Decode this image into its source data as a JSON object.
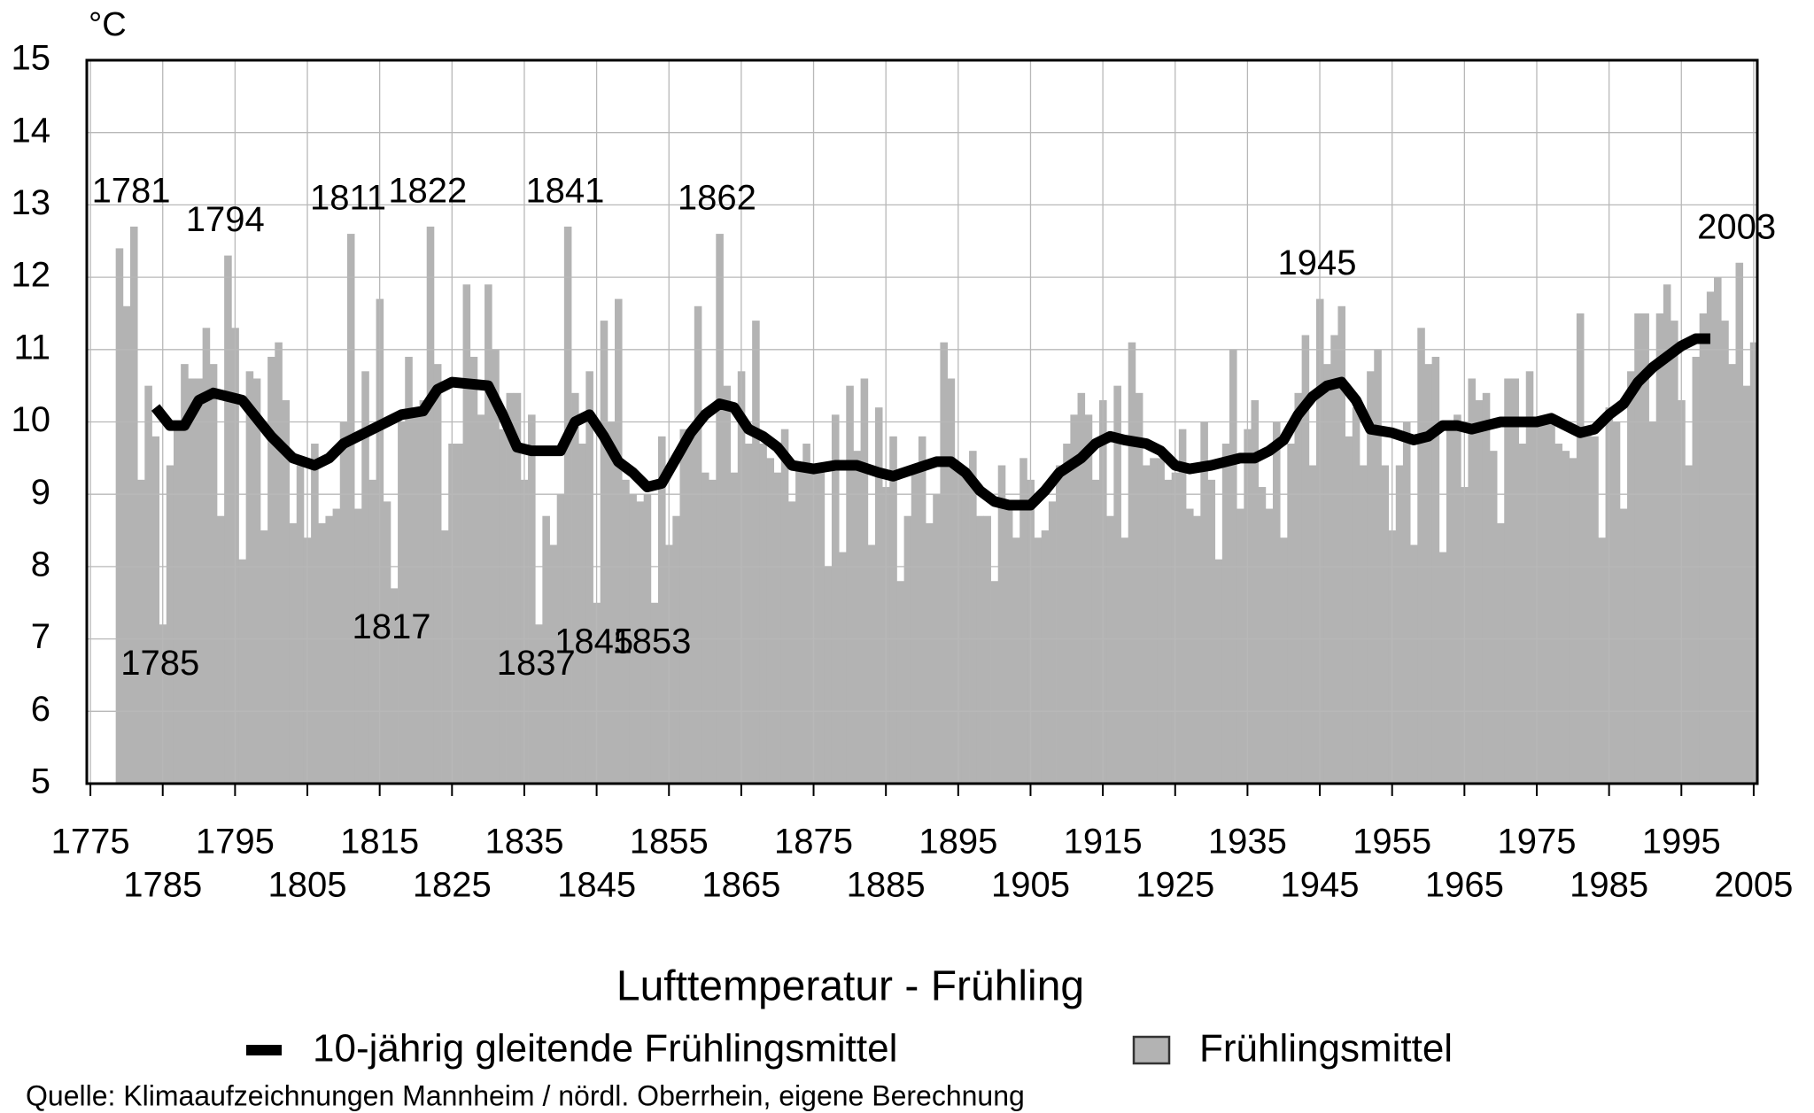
{
  "chart_data": {
    "type": "bar",
    "title": "Lufttemperatur - Frühling",
    "ylabel": "°C",
    "source": "Quelle: Klimaaufzeichnungen Mannheim / nördl. Oberrhein, eigene Berechnung",
    "xlim": [
      1774.5,
      2005.5
    ],
    "xticks": [
      1775,
      1785,
      1795,
      1805,
      1815,
      1825,
      1835,
      1845,
      1855,
      1865,
      1875,
      1885,
      1895,
      1905,
      1915,
      1925,
      1935,
      1945,
      1955,
      1965,
      1975,
      1985,
      1995,
      2005
    ],
    "ylim": [
      5,
      15
    ],
    "yticks": [
      5,
      6,
      7,
      8,
      9,
      10,
      11,
      12,
      13,
      14,
      15
    ],
    "grid": true,
    "x": [
      1779,
      1780,
      1781,
      1782,
      1783,
      1784,
      1785,
      1786,
      1787,
      1788,
      1789,
      1790,
      1791,
      1792,
      1793,
      1794,
      1795,
      1796,
      1797,
      1798,
      1799,
      1800,
      1801,
      1802,
      1803,
      1804,
      1805,
      1806,
      1807,
      1808,
      1809,
      1810,
      1811,
      1812,
      1813,
      1814,
      1815,
      1816,
      1817,
      1818,
      1819,
      1820,
      1821,
      1822,
      1823,
      1824,
      1825,
      1826,
      1827,
      1828,
      1829,
      1830,
      1831,
      1832,
      1833,
      1834,
      1835,
      1836,
      1837,
      1838,
      1839,
      1840,
      1841,
      1842,
      1843,
      1844,
      1845,
      1846,
      1847,
      1848,
      1849,
      1850,
      1851,
      1852,
      1853,
      1854,
      1855,
      1856,
      1857,
      1858,
      1859,
      1860,
      1861,
      1862,
      1863,
      1864,
      1865,
      1866,
      1867,
      1868,
      1869,
      1870,
      1871,
      1872,
      1873,
      1874,
      1875,
      1876,
      1877,
      1878,
      1879,
      1880,
      1881,
      1882,
      1883,
      1884,
      1885,
      1886,
      1887,
      1888,
      1889,
      1890,
      1891,
      1892,
      1893,
      1894,
      1895,
      1896,
      1897,
      1898,
      1899,
      1900,
      1901,
      1902,
      1903,
      1904,
      1905,
      1906,
      1907,
      1908,
      1909,
      1910,
      1911,
      1912,
      1913,
      1914,
      1915,
      1916,
      1917,
      1918,
      1919,
      1920,
      1921,
      1922,
      1923,
      1924,
      1925,
      1926,
      1927,
      1928,
      1929,
      1930,
      1931,
      1932,
      1933,
      1934,
      1935,
      1936,
      1937,
      1938,
      1939,
      1940,
      1941,
      1942,
      1943,
      1944,
      1945,
      1946,
      1947,
      1948,
      1949,
      1950,
      1951,
      1952,
      1953,
      1954,
      1955,
      1956,
      1957,
      1958,
      1959,
      1960,
      1961,
      1962,
      1963,
      1964,
      1965,
      1966,
      1967,
      1968,
      1969,
      1970,
      1971,
      1972,
      1973,
      1974,
      1975,
      1976,
      1977,
      1978,
      1979,
      1980,
      1981,
      1982,
      1983,
      1984,
      1985,
      1986,
      1987,
      1988,
      1989,
      1990,
      1991,
      1992,
      1993,
      1994,
      1995,
      1996,
      1997,
      1998,
      1999,
      2000,
      2001,
      2002,
      2003,
      2004,
      2005
    ],
    "series": [
      {
        "name": "Frühlingsmittel",
        "type": "bar",
        "color": "#b3b3b3",
        "values": [
          12.4,
          11.6,
          12.7,
          9.2,
          10.5,
          9.8,
          7.2,
          9.4,
          10.0,
          10.8,
          10.6,
          10.6,
          11.3,
          10.8,
          8.7,
          12.3,
          11.3,
          8.1,
          10.7,
          10.6,
          8.5,
          10.9,
          11.1,
          10.3,
          8.6,
          9.4,
          8.4,
          9.7,
          8.6,
          8.7,
          8.8,
          10.0,
          12.6,
          8.8,
          10.7,
          9.2,
          11.7,
          8.9,
          7.7,
          10.0,
          10.9,
          10.1,
          10.3,
          12.7,
          10.8,
          8.5,
          9.7,
          9.7,
          11.9,
          10.9,
          10.1,
          11.9,
          11.0,
          9.9,
          10.4,
          10.4,
          9.2,
          10.1,
          7.2,
          8.7,
          8.3,
          9.0,
          12.7,
          10.4,
          9.7,
          10.7,
          7.5,
          11.4,
          10.0,
          11.7,
          9.2,
          9.0,
          8.9,
          9.0,
          7.5,
          9.8,
          8.3,
          8.7,
          9.9,
          9.8,
          11.6,
          9.3,
          9.2,
          12.6,
          10.5,
          9.3,
          10.7,
          9.7,
          11.4,
          9.7,
          9.5,
          9.3,
          9.9,
          8.9,
          9.4,
          9.7,
          9.4,
          9.4,
          8.0,
          10.1,
          8.2,
          10.5,
          9.6,
          10.6,
          8.3,
          10.2,
          9.1,
          9.8,
          7.8,
          8.7,
          9.4,
          9.8,
          8.6,
          9.0,
          11.1,
          10.6,
          9.4,
          9.3,
          9.6,
          8.7,
          8.7,
          7.8,
          9.4,
          8.8,
          8.4,
          9.5,
          9.2,
          8.4,
          8.5,
          8.9,
          9.4,
          9.7,
          10.1,
          10.4,
          10.1,
          9.2,
          10.3,
          8.7,
          10.5,
          8.4,
          11.1,
          10.4,
          9.4,
          9.5,
          9.5,
          9.2,
          9.3,
          9.9,
          8.8,
          8.7,
          10.0,
          9.2,
          8.1,
          9.7,
          11.0,
          8.8,
          9.9,
          10.3,
          9.1,
          8.8,
          10.0,
          8.4,
          9.7,
          10.4,
          11.2,
          9.4,
          11.7,
          10.8,
          11.2,
          11.6,
          9.8,
          10.2,
          9.4,
          10.7,
          11.0,
          9.4,
          8.5,
          9.4,
          10.0,
          8.3,
          11.3,
          10.8,
          10.9,
          8.2,
          10.0,
          10.1,
          9.1,
          10.6,
          10.3,
          10.4,
          9.6,
          8.6,
          10.6,
          10.6,
          9.7,
          10.7,
          10.0,
          10.0,
          10.0,
          9.7,
          9.6,
          9.5,
          11.5,
          9.9,
          9.8,
          8.4,
          10.2,
          10.0,
          8.8,
          10.7,
          11.5,
          11.5,
          10.0,
          11.5,
          11.9,
          11.4,
          10.3,
          9.4,
          10.9,
          11.5,
          11.8,
          12.0,
          11.4,
          10.8,
          12.2,
          10.5,
          11.1
        ]
      },
      {
        "name": "10-jährig gleitende Frühlingsmittel",
        "type": "line",
        "color": "#000000",
        "x": [
          1784,
          1786,
          1788,
          1790,
          1792,
          1796,
          1800,
          1803,
          1806,
          1808,
          1810,
          1815,
          1818,
          1821,
          1823,
          1825,
          1830,
          1832,
          1834,
          1836,
          1840,
          1842,
          1844,
          1846,
          1848,
          1850,
          1852,
          1854,
          1856,
          1858,
          1860,
          1862,
          1864,
          1866,
          1868,
          1870,
          1872,
          1875,
          1878,
          1881,
          1884,
          1886,
          1889,
          1892,
          1894,
          1896,
          1898,
          1900,
          1902,
          1905,
          1907,
          1909,
          1912,
          1914,
          1916,
          1918,
          1921,
          1923,
          1925,
          1927,
          1930,
          1932,
          1934,
          1936,
          1938,
          1940,
          1942,
          1944,
          1946,
          1948,
          1950,
          1952,
          1955,
          1958,
          1960,
          1962,
          1964,
          1966,
          1968,
          1970,
          1973,
          1975,
          1977,
          1979,
          1981,
          1983,
          1985,
          1987,
          1989,
          1991,
          1993,
          1995,
          1997,
          1999
        ],
        "values": [
          10.2,
          9.95,
          9.95,
          10.3,
          10.4,
          10.3,
          9.8,
          9.5,
          9.4,
          9.5,
          9.7,
          9.95,
          10.1,
          10.15,
          10.45,
          10.55,
          10.5,
          10.1,
          9.65,
          9.6,
          9.6,
          10.0,
          10.1,
          9.8,
          9.45,
          9.3,
          9.1,
          9.15,
          9.5,
          9.85,
          10.1,
          10.25,
          10.2,
          9.9,
          9.8,
          9.65,
          9.4,
          9.35,
          9.4,
          9.4,
          9.3,
          9.25,
          9.35,
          9.45,
          9.45,
          9.3,
          9.05,
          8.9,
          8.85,
          8.85,
          9.05,
          9.3,
          9.5,
          9.7,
          9.8,
          9.75,
          9.7,
          9.6,
          9.4,
          9.35,
          9.4,
          9.45,
          9.5,
          9.5,
          9.6,
          9.75,
          10.1,
          10.35,
          10.5,
          10.55,
          10.3,
          9.9,
          9.85,
          9.75,
          9.8,
          9.95,
          9.95,
          9.9,
          9.95,
          10.0,
          10.0,
          10.0,
          10.05,
          9.95,
          9.85,
          9.9,
          10.1,
          10.25,
          10.55,
          10.75,
          10.9,
          11.05,
          11.15,
          11.15
        ]
      }
    ],
    "annotations": [
      {
        "label": "1781",
        "x": 1781,
        "position": "above"
      },
      {
        "label": "1794",
        "x": 1794,
        "position": "above"
      },
      {
        "label": "1811",
        "x": 1811,
        "position": "above"
      },
      {
        "label": "1822",
        "x": 1822,
        "position": "above"
      },
      {
        "label": "1841",
        "x": 1841,
        "position": "above"
      },
      {
        "label": "1862",
        "x": 1862,
        "position": "above"
      },
      {
        "label": "1945",
        "x": 1945,
        "position": "above"
      },
      {
        "label": "2003",
        "x": 2003,
        "position": "above"
      },
      {
        "label": "1785",
        "x": 1785,
        "position": "below"
      },
      {
        "label": "1817",
        "x": 1817,
        "position": "below"
      },
      {
        "label": "1837",
        "x": 1837,
        "position": "below"
      },
      {
        "label": "1845",
        "x": 1845,
        "position": "below"
      },
      {
        "label": "1853",
        "x": 1853,
        "position": "below"
      }
    ]
  }
}
